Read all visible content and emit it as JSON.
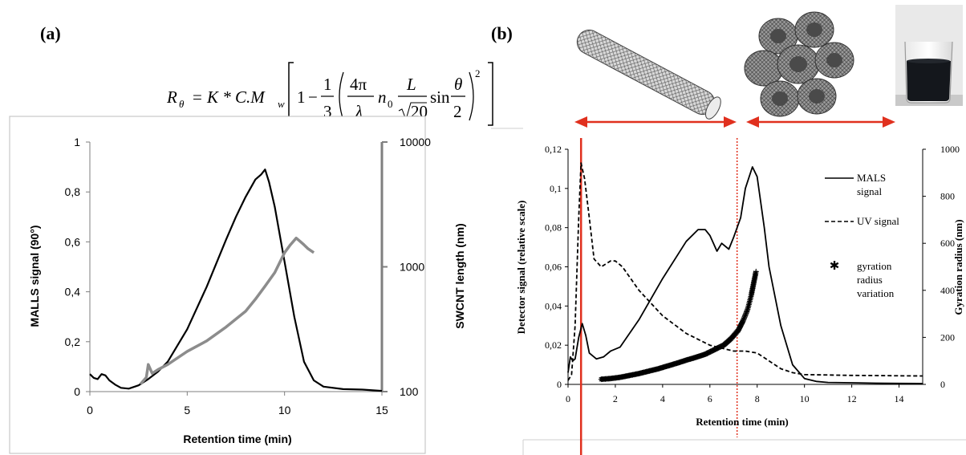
{
  "panel_a": {
    "label": "(a)",
    "formula": {
      "lhs": "R",
      "lhs_sub": "θ",
      "eq": "=",
      "k": "K * C.M",
      "k_sub": "w",
      "one": "1",
      "minus": "−",
      "frac1_num": "1",
      "frac1_den": "3",
      "frac2_num": "4π",
      "frac2_den": "λ",
      "n": "n",
      "n_sub": "0",
      "frac3_num": "L",
      "frac3_den": "20",
      "sin": "sin",
      "frac4_num": "θ",
      "frac4_den": "2",
      "power": "2"
    }
  },
  "panel_b": {
    "label": "(b)",
    "illustrations": [
      "single nanotube",
      "nanotube bundle",
      "dispersion beaker photo"
    ]
  },
  "colors": {
    "black": "#000000",
    "gray_series": "#8c8c8c",
    "axis_gray": "#7f7f7f",
    "red_marker": "#e0301e"
  },
  "chart_data": [
    {
      "type": "line",
      "panel": "a",
      "xlabel": "Retention time (min)",
      "ylabel": "MALLS signal (90°)",
      "y2label": "SWCNT length (nm)",
      "xlim": [
        0,
        15
      ],
      "ylim": [
        0,
        1
      ],
      "y2lim": [
        100,
        10000
      ],
      "y2_scale": "log",
      "x_ticks": [
        "0",
        "5",
        "10",
        "15"
      ],
      "y_ticks": [
        "0",
        "0,2",
        "0,4",
        "0,6",
        "0,8",
        "1"
      ],
      "y2_ticks": [
        "100",
        "1000",
        "10000"
      ],
      "grid": false,
      "series": [
        {
          "color": "#000000",
          "axis": "left",
          "x": [
            0,
            0.2,
            0.4,
            0.6,
            0.8,
            1.0,
            1.3,
            1.6,
            2.0,
            2.5,
            3.0,
            3.5,
            4.0,
            5.0,
            6.0,
            7.0,
            7.5,
            8.0,
            8.5,
            8.8,
            9.0,
            9.2,
            9.5,
            10.0,
            10.5,
            11.0,
            11.5,
            12.0,
            13.0,
            14.0,
            15.0
          ],
          "y": [
            0.07,
            0.055,
            0.05,
            0.07,
            0.065,
            0.045,
            0.028,
            0.015,
            0.012,
            0.025,
            0.05,
            0.08,
            0.12,
            0.25,
            0.42,
            0.61,
            0.7,
            0.78,
            0.85,
            0.87,
            0.89,
            0.84,
            0.74,
            0.52,
            0.3,
            0.12,
            0.045,
            0.02,
            0.01,
            0.008,
            0.003
          ]
        },
        {
          "color": "#8c8c8c",
          "axis": "right",
          "x": [
            2.6,
            2.9,
            3.0,
            3.2,
            3.5,
            4.0,
            5.0,
            6.0,
            7.0,
            8.0,
            8.5,
            9.0,
            9.5,
            10.0,
            10.3,
            10.6,
            10.8,
            11.0,
            11.2,
            11.5
          ],
          "y": [
            115,
            130,
            165,
            140,
            150,
            165,
            210,
            255,
            330,
            440,
            550,
            700,
            900,
            1300,
            1500,
            1700,
            1600,
            1500,
            1400,
            1300
          ]
        }
      ]
    },
    {
      "type": "line",
      "panel": "b",
      "xlabel": "Retention time (min)",
      "ylabel": "Detector signal (relative scale)",
      "y2label": "Gyration radius (nm)",
      "xlim": [
        0,
        15
      ],
      "ylim": [
        0,
        0.12
      ],
      "y2lim": [
        0,
        1000
      ],
      "x_ticks": [
        "0",
        "2",
        "4",
        "6",
        "8",
        "10",
        "12",
        "14"
      ],
      "y_ticks": [
        "0",
        "0,02",
        "0,04",
        "0,06",
        "0,08",
        "0,1",
        "0,12"
      ],
      "y2_ticks": [
        "0",
        "200",
        "400",
        "600",
        "800",
        "1000"
      ],
      "grid": false,
      "legend_position": "right",
      "markers": {
        "solid_line_x": 0.55,
        "dotted_line_x": 7.15
      },
      "series": [
        {
          "name": "MALS signal",
          "style": "solid",
          "axis": "left",
          "x": [
            0,
            0.1,
            0.2,
            0.3,
            0.45,
            0.6,
            0.75,
            0.9,
            1.2,
            1.5,
            1.8,
            2.2,
            3.0,
            4.0,
            5.0,
            5.5,
            5.8,
            6.0,
            6.3,
            6.5,
            6.8,
            7.0,
            7.3,
            7.5,
            7.8,
            8.0,
            8.3,
            8.5,
            9.0,
            9.5,
            10.0,
            10.5,
            11.0,
            12.0,
            13.0,
            14.0,
            15.0
          ],
          "y": [
            0.006,
            0.014,
            0.012,
            0.013,
            0.024,
            0.031,
            0.025,
            0.016,
            0.013,
            0.014,
            0.017,
            0.019,
            0.033,
            0.054,
            0.073,
            0.079,
            0.079,
            0.076,
            0.068,
            0.072,
            0.069,
            0.075,
            0.085,
            0.1,
            0.111,
            0.106,
            0.08,
            0.06,
            0.03,
            0.01,
            0.003,
            0.0015,
            0.001,
            0.0008,
            0.0006,
            0.0005,
            0.0004
          ]
        },
        {
          "name": "UV signal",
          "style": "dashed",
          "axis": "left",
          "x": [
            0,
            0.15,
            0.3,
            0.45,
            0.55,
            0.7,
            0.9,
            1.1,
            1.4,
            1.8,
            2.0,
            2.3,
            3.0,
            4.0,
            5.0,
            6.0,
            7.0,
            7.5,
            8.0,
            8.5,
            9.0,
            9.5,
            10.0,
            11.0,
            12.0,
            13.0,
            14.0,
            15.0
          ],
          "y": [
            0.002,
            0.005,
            0.03,
            0.085,
            0.113,
            0.105,
            0.085,
            0.064,
            0.06,
            0.063,
            0.063,
            0.06,
            0.048,
            0.035,
            0.026,
            0.02,
            0.017,
            0.017,
            0.016,
            0.012,
            0.008,
            0.006,
            0.005,
            0.0048,
            0.0046,
            0.0045,
            0.0044,
            0.0043
          ]
        },
        {
          "name": "gyration radius variation",
          "style": "markers",
          "marker": "asterisk",
          "axis": "right",
          "x": [
            1.4,
            1.8,
            2.2,
            2.6,
            3.0,
            3.4,
            3.8,
            4.2,
            4.6,
            5.0,
            5.4,
            5.8,
            6.2,
            6.6,
            6.9,
            7.2,
            7.4,
            7.6,
            7.75,
            7.85,
            7.95
          ],
          "y": [
            22,
            25,
            30,
            38,
            46,
            56,
            66,
            78,
            90,
            103,
            115,
            128,
            148,
            168,
            195,
            230,
            270,
            320,
            380,
            430,
            480
          ]
        }
      ]
    }
  ]
}
